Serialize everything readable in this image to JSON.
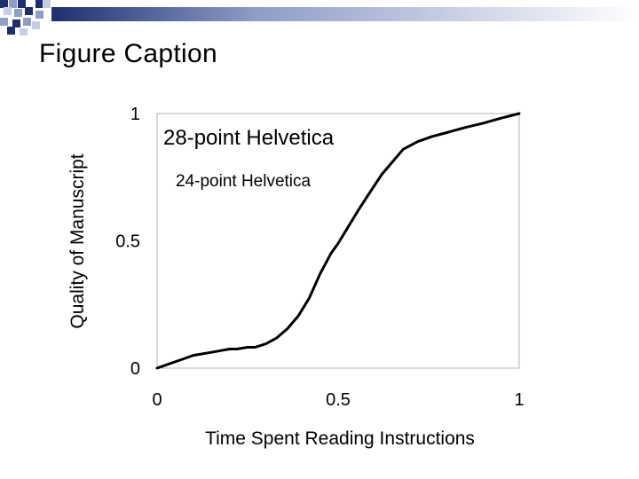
{
  "slide": {
    "title": "Figure Caption",
    "deco_colors": [
      "#1f2f6e",
      "#8f9dc7",
      "#c6cde6"
    ]
  },
  "chart_data": {
    "type": "line",
    "title": "",
    "xlabel": "Time Spent Reading Instructions",
    "ylabel": "Quality of Manuscript",
    "xlim": [
      0,
      1
    ],
    "ylim": [
      0,
      1
    ],
    "x_ticks": [
      0,
      0.5,
      1
    ],
    "x_tick_labels": [
      "0",
      "0.5",
      "1"
    ],
    "y_ticks": [
      0,
      0.5,
      1
    ],
    "y_tick_labels": [
      "0",
      "0.5",
      "1"
    ],
    "grid": false,
    "annotations": [
      "28-point Helvetica",
      "24-point Helvetica"
    ],
    "series": [
      {
        "color": "#000000",
        "x": [
          0,
          0.03,
          0.07,
          0.1,
          0.15,
          0.2,
          0.22,
          0.25,
          0.27,
          0.3,
          0.33,
          0.36,
          0.39,
          0.42,
          0.45,
          0.48,
          0.5,
          0.53,
          0.56,
          0.59,
          0.62,
          0.65,
          0.68,
          0.72,
          0.76,
          0.8,
          0.85,
          0.9,
          0.95,
          1.0
        ],
        "y": [
          0,
          0.015,
          0.035,
          0.05,
          0.062,
          0.075,
          0.075,
          0.082,
          0.082,
          0.095,
          0.118,
          0.155,
          0.205,
          0.275,
          0.37,
          0.45,
          0.49,
          0.56,
          0.63,
          0.695,
          0.76,
          0.81,
          0.86,
          0.89,
          0.91,
          0.925,
          0.945,
          0.962,
          0.982,
          1.0
        ]
      }
    ]
  }
}
